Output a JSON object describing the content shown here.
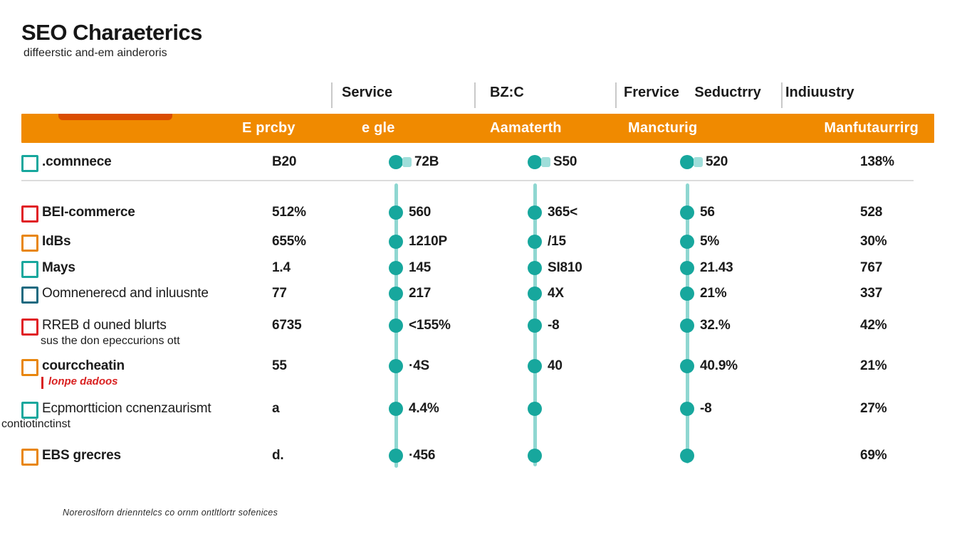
{
  "title": "SEO Charaeterics",
  "subtitle": "diffeerstic and-em ainderoris",
  "colors": {
    "band_orange": "#f08a00",
    "teal": "#17a79d",
    "teal_line": "#8fd7d1",
    "teal_light": "#9fdeda",
    "red": "#e01f26",
    "orange_box": "#e8860d",
    "steel": "#1d6a80",
    "note_red": "#d92121",
    "text": "#1b1b1b"
  },
  "column_headers": [
    {
      "label": "Service"
    },
    {
      "label": "BZ:C"
    },
    {
      "label": "Frervice Seductrry"
    },
    {
      "label": "Indiuustry"
    }
  ],
  "band_labels": [
    "E prcby",
    "e gle",
    "Aamaterth",
    "Mancturig",
    "Manfutaurrirg"
  ],
  "footer": "Noreroslforn drienntelcs co ornm ontltlortr sofenices",
  "chart_data": {
    "type": "table",
    "title": "SEO Charaeterics",
    "column_groups": [
      "Service",
      "BZ:C",
      "Frervice Seductrry",
      "Indiuustry"
    ],
    "columns": [
      "E prcby",
      "e gle",
      "Aamaterth",
      "Mancturig",
      "Manfutaurrirg"
    ],
    "rows": [
      {
        "label": ".comnnece",
        "sublabel": "",
        "sublabel_style": "",
        "box_color": "teal",
        "label_weight": "bold",
        "values": [
          "B20",
          "72B",
          "S50",
          "520",
          "138%"
        ]
      },
      {
        "label": "BEI-commerce",
        "sublabel": "",
        "sublabel_style": "",
        "box_color": "red",
        "label_weight": "bold",
        "values": [
          "512%",
          "560",
          "365<",
          "56",
          "528"
        ]
      },
      {
        "label": "IdBs",
        "sublabel": "",
        "sublabel_style": "",
        "box_color": "orange",
        "label_weight": "bold",
        "values": [
          "655%",
          "1210P",
          "/15",
          "5%",
          "30%"
        ]
      },
      {
        "label": "Mays",
        "sublabel": "",
        "sublabel_style": "",
        "box_color": "teal",
        "label_weight": "bold",
        "values": [
          "1.4",
          "145",
          "SI810",
          "21.43",
          "767"
        ]
      },
      {
        "label": "Oomnenerecd and inluusnte",
        "sublabel": "",
        "sublabel_style": "",
        "box_color": "steel",
        "label_weight": "normal",
        "values": [
          "77",
          "217",
          "4X",
          "21%",
          "337"
        ]
      },
      {
        "label": "RREB d ouned blurts",
        "sublabel": "sus the don epeccurions ott",
        "sublabel_style": "plain",
        "box_color": "red",
        "label_weight": "normal",
        "values": [
          "6735",
          "<155%",
          "-8",
          "32.%",
          "42%"
        ]
      },
      {
        "label": "courccheatin",
        "sublabel": "lonpe dadoos",
        "sublabel_style": "red-italic",
        "box_color": "orange",
        "label_weight": "bold",
        "values": [
          "55",
          "·4S",
          "40",
          "40.9%",
          "21%"
        ]
      },
      {
        "label": "Ecpmortticion ccnenzaurismt",
        "sublabel": "contiotinctinst",
        "sublabel_style": "plain",
        "box_color": "teal",
        "label_weight": "normal",
        "values": [
          "a",
          "4.4%",
          "",
          "-8",
          "27%"
        ]
      },
      {
        "label": "EBS grecres",
        "sublabel": "",
        "sublabel_style": "",
        "box_color": "orange",
        "label_weight": "bold",
        "values": [
          "d.",
          "·456",
          "",
          "",
          "69%"
        ]
      }
    ]
  }
}
